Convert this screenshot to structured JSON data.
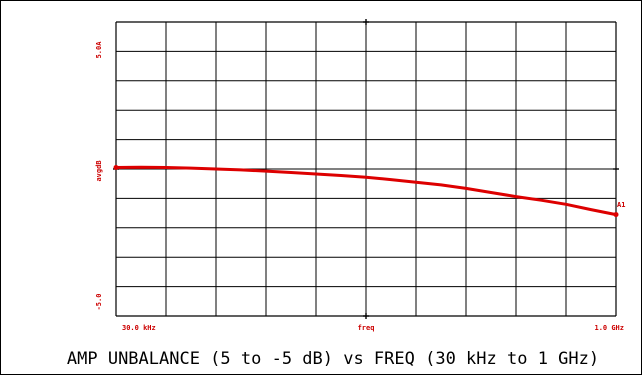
{
  "chart_data": {
    "type": "line",
    "title": "AMP UNBALANCE (5 to -5 dB) vs FREQ (30 kHz to 1 GHz)",
    "xlabel": "freq",
    "ylabel": "avgdB",
    "x_start_label": "30.0 kHz",
    "x_end_label": "1.0 GHz",
    "y_top_label": "5.0A",
    "y_bottom_label": "-5.0",
    "marker_label": "A1",
    "xlim": [
      0,
      10
    ],
    "ylim": [
      -5,
      5
    ],
    "grid": true,
    "x_divisions": 10,
    "y_divisions": 10,
    "line_color": "#dd0000",
    "series": [
      {
        "x": [
          0,
          0.5,
          1,
          1.5,
          2,
          2.5,
          3,
          3.5,
          4,
          4.5,
          5,
          5.5,
          6,
          6.5,
          7,
          7.5,
          8,
          8.5,
          9,
          9.5,
          10
        ],
        "values": [
          0.05,
          0.06,
          0.05,
          0.03,
          0.0,
          -0.03,
          -0.07,
          -0.12,
          -0.17,
          -0.22,
          -0.28,
          -0.36,
          -0.45,
          -0.54,
          -0.66,
          -0.8,
          -0.94,
          -1.06,
          -1.2,
          -1.38,
          -1.55
        ]
      }
    ]
  }
}
